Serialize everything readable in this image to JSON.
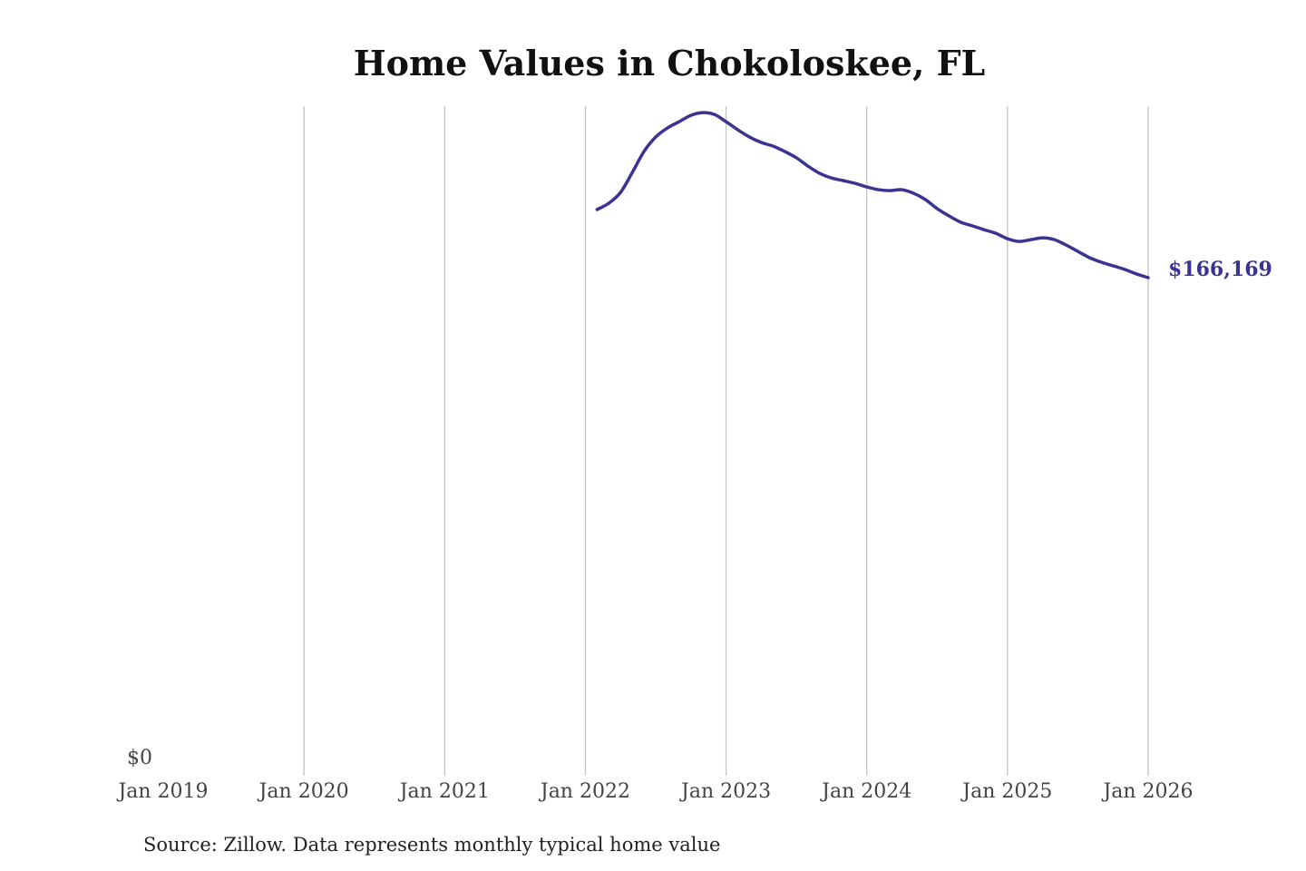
{
  "chart_data": {
    "type": "line",
    "title": "Home Values in Chokoloskee, FL",
    "xlabel": "",
    "ylabel": "",
    "source": "Source: Zillow. Data represents monthly typical home value",
    "x_ticks": [
      "Jan 2019",
      "Jan 2020",
      "Jan 2021",
      "Jan 2022",
      "Jan 2023",
      "Jan 2024",
      "Jan 2025",
      "Jan 2026"
    ],
    "y_ticks": [
      "$0"
    ],
    "xlim": [
      "2019-01",
      "2026-01"
    ],
    "ylim": [
      0,
      166169
    ],
    "grid": "vertical",
    "line_color": "#3a3391",
    "end_label": "$166,169",
    "series": [
      {
        "name": "Typical home value",
        "x": [
          "2022-02",
          "2022-03",
          "2022-04",
          "2022-05",
          "2022-06",
          "2022-07",
          "2022-08",
          "2022-09",
          "2022-10",
          "2022-11",
          "2022-12",
          "2023-01",
          "2023-02",
          "2023-03",
          "2023-04",
          "2023-05",
          "2023-06",
          "2023-07",
          "2023-08",
          "2023-09",
          "2023-10",
          "2023-11",
          "2023-12",
          "2024-01",
          "2024-02",
          "2024-03",
          "2024-04",
          "2024-05",
          "2024-06",
          "2024-07",
          "2024-08",
          "2024-09",
          "2024-10",
          "2024-11",
          "2024-12",
          "2025-01",
          "2025-02",
          "2025-03",
          "2025-04",
          "2025-05",
          "2025-06",
          "2025-07",
          "2025-08",
          "2025-09",
          "2025-10",
          "2025-11",
          "2025-12",
          "2026-01"
        ],
        "values": [
          188800,
          190900,
          194500,
          201100,
          208100,
          212900,
          215900,
          218000,
          220100,
          221000,
          220400,
          218000,
          215300,
          212900,
          211100,
          209900,
          208100,
          206000,
          203200,
          200800,
          199300,
          198400,
          197500,
          196300,
          195400,
          195100,
          195400,
          194200,
          192100,
          189100,
          186700,
          184600,
          183400,
          182100,
          180900,
          179100,
          178200,
          178800,
          179400,
          178800,
          177000,
          174900,
          172800,
          171300,
          170100,
          168900,
          167400,
          166169
        ]
      }
    ]
  }
}
